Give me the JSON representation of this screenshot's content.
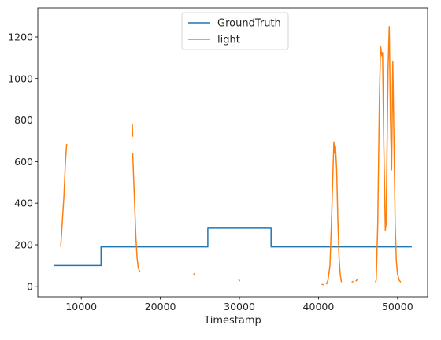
{
  "chart_data": {
    "type": "line",
    "title": "",
    "xlabel": "Timestamp",
    "ylabel": "",
    "xlim": [
      4500,
      53800
    ],
    "ylim": [
      -50,
      1340
    ],
    "x_ticks": [
      10000,
      20000,
      30000,
      40000,
      50000
    ],
    "x_tick_labels": [
      "10000",
      "20000",
      "30000",
      "40000",
      "50000"
    ],
    "y_ticks": [
      0,
      200,
      400,
      600,
      800,
      1000,
      1200
    ],
    "y_tick_labels": [
      "0",
      "200",
      "400",
      "600",
      "800",
      "1000",
      "1200"
    ],
    "grid": false,
    "legend_position": "top-center",
    "series": [
      {
        "name": "GroundTruth",
        "color": "#1f77b4",
        "segments": [
          [
            [
              6500,
              100
            ],
            [
              12500,
              100
            ],
            [
              12500,
              190
            ],
            [
              26000,
              190
            ],
            [
              26000,
              280
            ],
            [
              34000,
              280
            ],
            [
              34000,
              190
            ],
            [
              51800,
              190
            ]
          ]
        ]
      },
      {
        "name": "light",
        "color": "#ff7f0e",
        "segments": [
          [
            [
              7400,
              190
            ],
            [
              7600,
              310
            ],
            [
              7800,
              430
            ],
            [
              8000,
              600
            ],
            [
              8150,
              685
            ]
          ],
          [
            [
              16450,
              780
            ],
            [
              16500,
              720
            ]
          ],
          [
            [
              16500,
              640
            ],
            [
              16600,
              540
            ],
            [
              16750,
              390
            ],
            [
              16900,
              240
            ],
            [
              17050,
              140
            ],
            [
              17200,
              90
            ],
            [
              17400,
              70
            ]
          ],
          [
            [
              24200,
              55
            ],
            [
              24300,
              62
            ]
          ],
          [
            [
              29900,
              35
            ],
            [
              30050,
              25
            ]
          ],
          [
            [
              40400,
              10
            ],
            [
              40700,
              8
            ]
          ],
          [
            [
              41000,
              10
            ],
            [
              41200,
              30
            ],
            [
              41450,
              100
            ],
            [
              41650,
              320
            ],
            [
              41850,
              580
            ],
            [
              41950,
              695
            ],
            [
              42050,
              640
            ],
            [
              42150,
              675
            ],
            [
              42300,
              560
            ],
            [
              42450,
              320
            ],
            [
              42600,
              140
            ],
            [
              42750,
              55
            ],
            [
              42900,
              20
            ]
          ],
          [
            [
              44200,
              20
            ],
            [
              44400,
              25
            ]
          ],
          [
            [
              44700,
              25
            ],
            [
              45000,
              35
            ]
          ],
          [
            [
              47200,
              20
            ],
            [
              47300,
              30
            ],
            [
              47500,
              300
            ],
            [
              47700,
              900
            ],
            [
              47850,
              1155
            ],
            [
              48000,
              1110
            ],
            [
              48100,
              1125
            ],
            [
              48250,
              700
            ],
            [
              48450,
              270
            ],
            [
              48550,
              300
            ],
            [
              48650,
              600
            ],
            [
              48800,
              1050
            ],
            [
              48950,
              1250
            ],
            [
              49100,
              810
            ],
            [
              49250,
              560
            ],
            [
              49400,
              1080
            ],
            [
              49550,
              700
            ],
            [
              49700,
              300
            ],
            [
              49850,
              120
            ],
            [
              50000,
              60
            ],
            [
              50200,
              30
            ],
            [
              50400,
              20
            ]
          ]
        ]
      }
    ]
  }
}
